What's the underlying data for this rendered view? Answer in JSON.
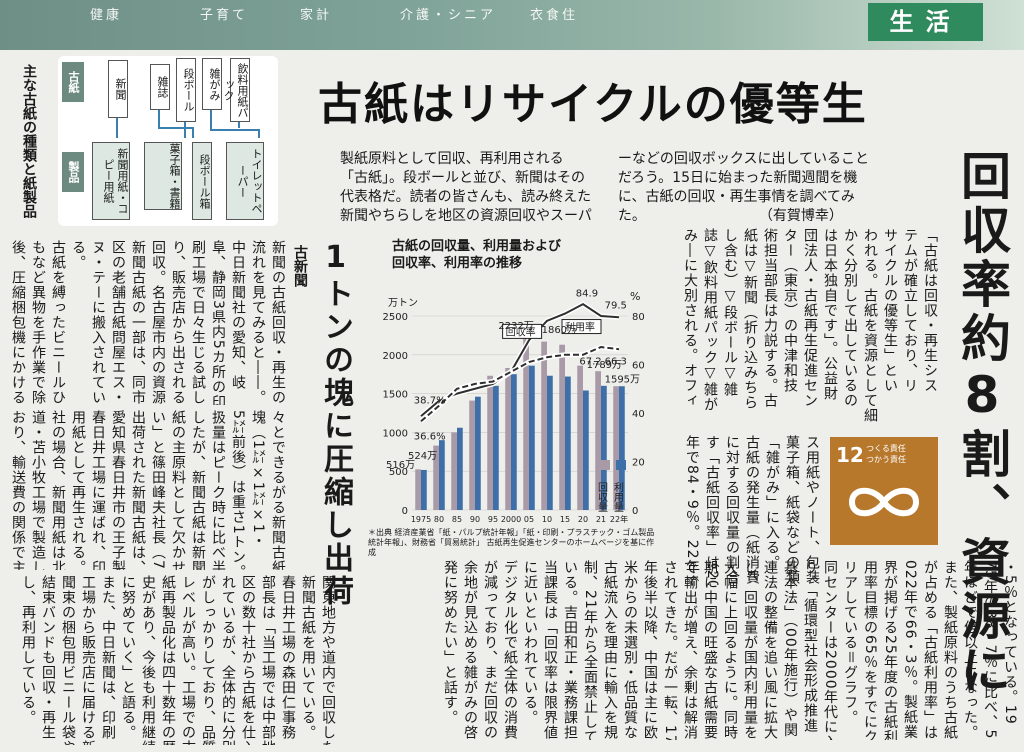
{
  "banner": {
    "nav": [
      "健康",
      "子育て",
      "家計",
      "介護・シニア",
      "衣食住"
    ],
    "section": "生活"
  },
  "diagram": {
    "title": "主な古紙の種類と紙製品",
    "paper_tag": "古紙",
    "product_tag": "製品",
    "sources": [
      "新聞",
      "雑誌",
      "段ボール",
      "雑がみ",
      "飲料用紙パック"
    ],
    "products": [
      "新聞用紙・コピー用紙",
      "菓子箱・書籍",
      "段ボール箱",
      "トイレットペーパー"
    ]
  },
  "headline": "古紙はリサイクルの優等生",
  "lead": [
    "製紙原料として回収、再利用される",
    "「古紙」。段ボールと並び、新聞はその",
    "代表格だ。読者の皆さんも、読み終えた",
    "新聞やちらしを地区の資源回収やスーパ",
    "ーなどの回収ボックスに出していること",
    "だろう。15日に始まった新聞週間を機",
    "に、古紙の回収・再生事情を調べてみ",
    "た。"
  ],
  "byline": "（有賀博幸）",
  "big_head": "回収率約8割、資源に",
  "sub_head": "1トンの塊に圧縮し出荷",
  "kicker": "古新聞",
  "sdg": {
    "number": "12",
    "text1": "つくる責任",
    "text2": "つかう責任"
  },
  "body_right": [
    "「古紙は回収・再生シス",
    "テムが確立しており、リ",
    "サイクルの優等生」とい",
    "われる。古紙を資源として細",
    "かく分別して出しているの",
    "は日本独自です」。公益財",
    "団法人・古紙再生促進セン",
    "ター（東京）の中津和技",
    "術担当部長は力説する。古",
    "紙は▽新聞（折り込みちら",
    "し含む）▽段ボール▽雑",
    "誌▽飲料用紙パック▽雑が",
    "み―に大別される。オフィ"
  ],
  "body_right2": [
    "ス用紙やノート、包装紙、",
    "菓子箱、紙袋などの類いは",
    "「雑がみ」に入る。",
    "古紙の発生量（紙消費量）",
    "に対する回収量の割合を示",
    "す「古紙回収率」は2020",
    "年で84・9％。22年では79"
  ],
  "body_bottom": [
    "・5％となっている。19",
    "75年の38・7％に比べ、50",
    "年ほどで倍以上になった。",
    "また、製紙原料のうち古紙",
    "が占める「古紙利用率」は2",
    "022年で66・3％。製紙業",
    "界が掲げる25年度の古紙利",
    "用率目標の65％をすでにク",
    "リアしている＝グラフ。",
    "同センターは2000年代に入",
    "り、「循環型社会形成推進",
    "基本法」（00年施行）や関",
    "連法の整備を追い風に拡大",
    "し、回収量が国内利用量を",
    "大幅に上回るように。同時",
    "期に中国の旺盛な古紙需要",
    "で輸出が増え、余剰は解消",
    "されてきた。だが一転、17",
    "年後半以降、中国は主に欧",
    "米からの未選別・低品質な",
    "古紙流入を理由に輸入を規",
    "制、21年から全面禁止して",
    "いる。吉田和正・業務課担",
    "当課長は「回収率は限界値",
    "に近いといわれている。",
    "デジタル化で紙全体の消費",
    "が減っており、まだ回収の",
    "余地が見込める雑がみの啓",
    "発に努めたい」と話す。"
  ],
  "body_mid": [
    "関東地方や道内で回収した",
    "新聞古紙を用いている。",
    "春日井工場の森田仁事務",
    "部長は「当工場では中部地",
    "区の数十社から古紙を仕入",
    "れているが、全体的に分別",
    "がしっかりしており、品質",
    "レベルが高い。工場での古",
    "紙再製品化は四十数年の歴",
    "史があり、今後も利用継続",
    "に努めていく」と語る。",
    "また、中日新聞は、印刷",
    "工場から販売店に届ける新",
    "聞束の梱包用ビニール袋や",
    "結束バンドも回収・再生",
    "し、再利用している。"
  ],
  "body_mid2": [
    "々とできるがる新聞古紙の",
    "塊（1㍍×1㍍×1・",
    "5㍍前後）は重さ1トン。「取",
    "扱量はピーク時に比べ半減",
    "したが、新聞古紙は新聞用",
    "紙の主原料として欠かせな",
    "い」と篠田峰夫社長（72）。",
    "出荷された新聞古紙は、",
    "愛知県春日井市の王子製紙",
    "春日井工場に運ばれ、印刷",
    "用紙として再生される。同",
    "社の場合、新聞用紙は北海",
    "道・苫小牧工場で製造して",
    "おり、輸送費の関係で主に"
  ],
  "body_left": [
    "新聞の古紙回収・再生の",
    "流れを見てみると――。",
    "中日新聞社の愛知、岐",
    "阜、静岡3県内5カ所の印",
    "刷工場で日々生じる試し刷",
    "り、販売店から出される",
    "回収。名古屋市内の資源",
    "新聞古紙の一部は、同市中",
    "区の老舗古紙問屋エス・エ",
    "ヌ・テーに搬入されてい",
    "る。",
    "古紙を縛ったビニールひ",
    "もなど異物を手作業で除去",
    "後、圧縮梱包機にかける。次"
  ],
  "chart_data": {
    "type": "bar",
    "title": "古紙の回収量、利用量および回収率、利用率の推移",
    "y_left_unit": "万トン",
    "y_right_unit": "%",
    "categories": [
      "1975",
      "80",
      "85",
      "90",
      "95",
      "2000",
      "05",
      "10",
      "15",
      "20",
      "21",
      "22年"
    ],
    "series": [
      {
        "name": "回収量",
        "values": [
          524,
          830,
          1000,
          1410,
          1730,
          1830,
          2232,
          2170,
          2130,
          1860,
          1789,
          1595
        ],
        "color": "#a99aa8"
      },
      {
        "name": "利用量",
        "values": [
          516,
          900,
          1060,
          1460,
          1600,
          1750,
          1860,
          1730,
          1720,
          1540,
          1600,
          1595
        ],
        "color": "#3f6fa8"
      }
    ],
    "lines": [
      {
        "name": "回収率",
        "values": [
          38.7,
          45,
          48,
          50,
          52,
          57,
          70,
          78,
          81,
          84.9,
          80,
          79.5
        ]
      },
      {
        "name": "利用率",
        "values": [
          36.6,
          43,
          50,
          52,
          53,
          57,
          61,
          63,
          64,
          64,
          67.2,
          66.3
        ]
      }
    ],
    "y_left_ticks": [
      "0",
      "500",
      "1000",
      "1500",
      "2000",
      "2500"
    ],
    "y_right_ticks": [
      "0",
      "20",
      "40",
      "60",
      "80"
    ],
    "ylim_left": [
      0,
      2500
    ],
    "ylim_right": [
      0,
      80
    ],
    "labels": {
      "left_tick_top": "万トン",
      "r1": "38.7%",
      "r2": "36.6%",
      "r3": "84.9",
      "r4": "79.5",
      "r5": "67.2",
      "r6": "66.3",
      "v1": "524万",
      "v2": "516万",
      "v3": "2232万",
      "v4": "1860万",
      "v5": "1789万",
      "v6": "1595万"
    },
    "source": "＊出典 経済産業省「紙・パルプ統計年報」「紙・印刷・プラスチック・ゴム製品統計年報」、財務省「貿易統計」 古紙再生促進センターのホームページを基に作成"
  }
}
